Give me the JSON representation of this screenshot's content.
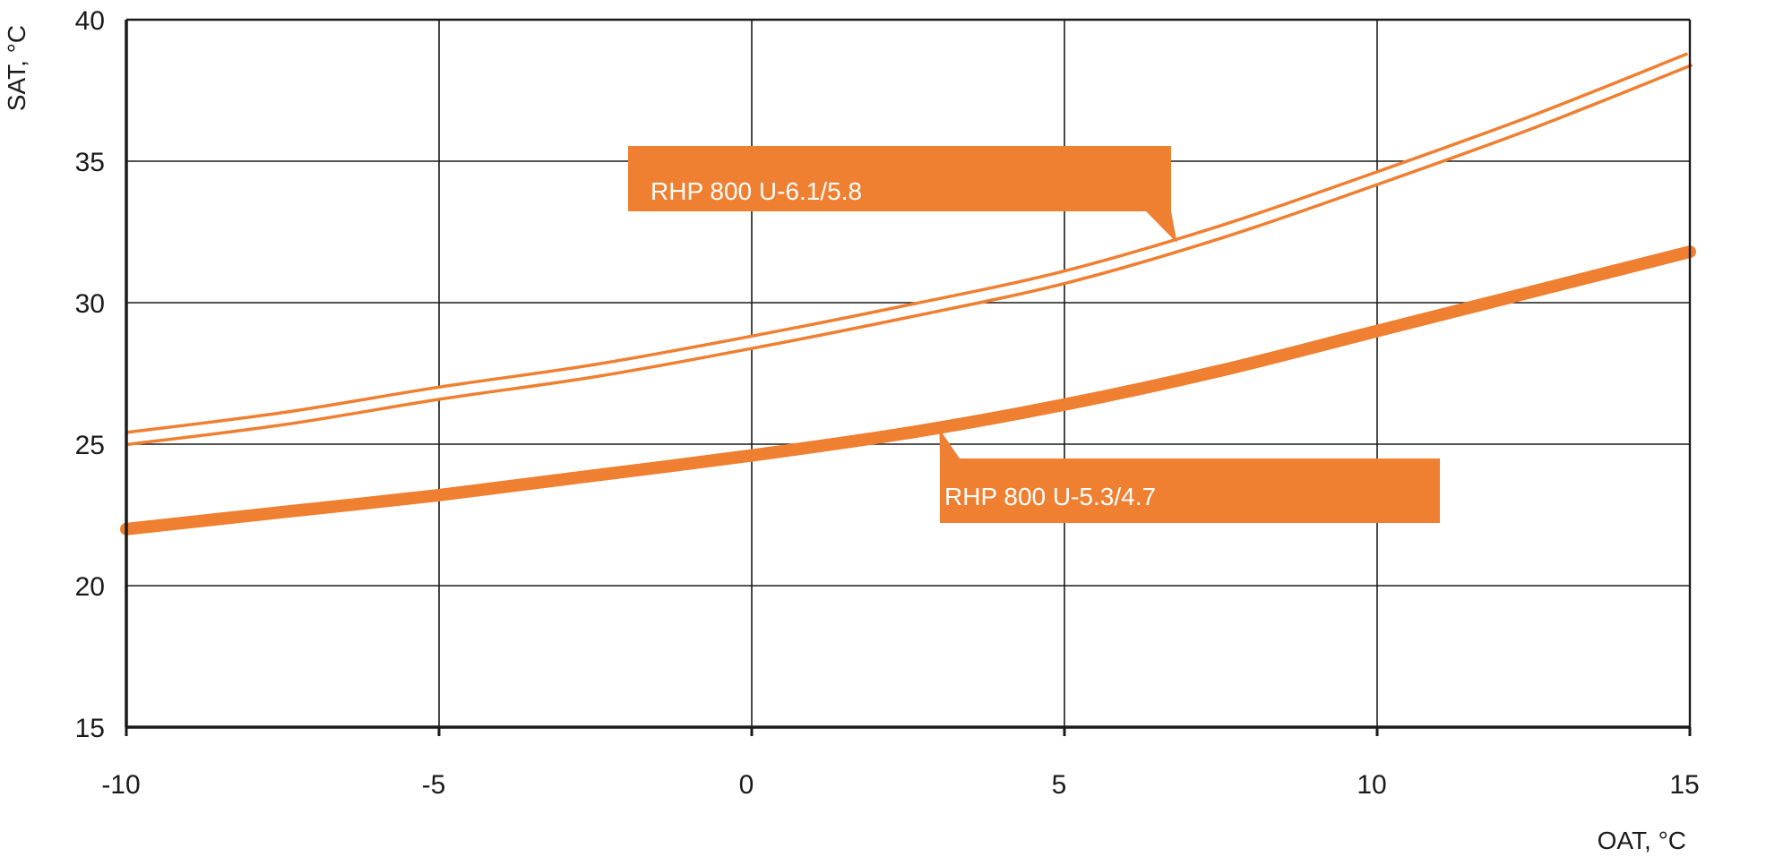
{
  "chart_data": {
    "type": "line",
    "xlabel": "OAT, °C",
    "ylabel": "SAT, °C",
    "xlim": [
      -10,
      15
    ],
    "ylim": [
      15,
      40
    ],
    "x_ticks": [
      -10,
      -5,
      0,
      5,
      10,
      15
    ],
    "y_ticks": [
      15,
      20,
      25,
      30,
      35,
      40
    ],
    "grid": true,
    "colors": {
      "series": "#EF7F31",
      "grid": "#1a1a1a",
      "label_text": "#ffffff"
    },
    "series": [
      {
        "name": "RHP 800 U-6.1/5.8",
        "style": "double",
        "x": [
          -10,
          -7.5,
          -5,
          -2.5,
          0,
          2.5,
          5,
          7.5,
          10,
          12.5,
          15
        ],
        "y": [
          25.2,
          25.9,
          26.8,
          27.6,
          28.6,
          29.7,
          30.9,
          32.5,
          34.4,
          36.4,
          38.6
        ]
      },
      {
        "name": "RHP 800 U-5.3/4.7",
        "style": "thick",
        "x": [
          -10,
          -7.5,
          -5,
          -2.5,
          0,
          2.5,
          5,
          7.5,
          10,
          12.5,
          15
        ],
        "y": [
          22.0,
          22.6,
          23.2,
          23.9,
          24.6,
          25.4,
          26.4,
          27.6,
          29.0,
          30.4,
          31.8
        ]
      }
    ],
    "annotations": [
      {
        "text": "RHP 800 U-6.1/5.8",
        "series": 0,
        "pointer_x": 6.8
      },
      {
        "text": "RHP 800 U-5.3/4.7",
        "series": 1,
        "pointer_x": 3.0
      }
    ]
  }
}
